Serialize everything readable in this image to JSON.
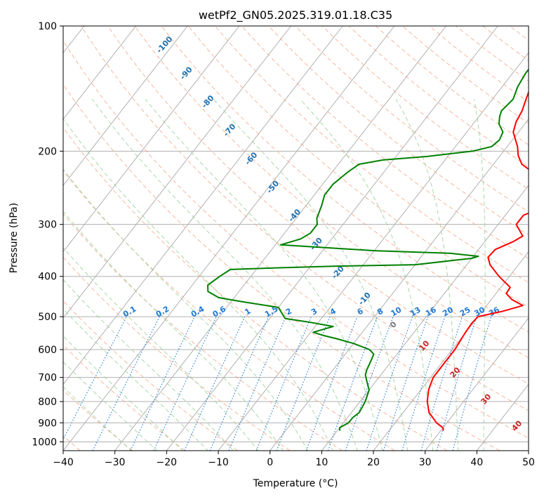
{
  "chart_data": {
    "type": "line",
    "chart_kind": "skew-T log-P diagram",
    "title": "wetPf2_GN05.2025.319.01.18.C35",
    "xlabel": "Temperature (°C)",
    "ylabel": "Pressure (hPa)",
    "xlim": [
      -40,
      50
    ],
    "ylim": [
      1050,
      100
    ],
    "y_scale": "log",
    "x_ticks": [
      -40,
      -30,
      -20,
      -10,
      0,
      10,
      20,
      30,
      40,
      50
    ],
    "y_ticks": [
      100,
      200,
      300,
      400,
      500,
      600,
      700,
      800,
      900,
      1000
    ],
    "grid": true,
    "series": [
      {
        "role": "temperature",
        "color": "#ff0000",
        "points": [
          [
            30.5,
            940
          ],
          [
            30,
            925
          ],
          [
            28,
            900
          ],
          [
            25,
            850
          ],
          [
            23,
            800
          ],
          [
            21.5,
            750
          ],
          [
            20.5,
            700
          ],
          [
            20.5,
            650
          ],
          [
            20.5,
            600
          ],
          [
            20,
            550
          ],
          [
            19.8,
            520
          ],
          [
            20,
            500
          ],
          [
            24,
            485
          ],
          [
            27,
            470
          ],
          [
            24,
            455
          ],
          [
            22,
            440
          ],
          [
            21.8,
            425
          ],
          [
            18,
            400
          ],
          [
            14.5,
            375
          ],
          [
            13,
            360
          ],
          [
            13.2,
            345
          ],
          [
            15.5,
            330
          ],
          [
            16.5,
            320
          ],
          [
            13.5,
            300
          ],
          [
            13.5,
            285
          ],
          [
            17,
            270
          ],
          [
            17.5,
            260
          ],
          [
            14,
            245
          ],
          [
            10.5,
            230
          ],
          [
            5.5,
            215
          ],
          [
            3.5,
            205
          ],
          [
            2,
            195
          ],
          [
            -1,
            180
          ],
          [
            -2,
            170
          ],
          [
            -2.5,
            160
          ],
          [
            -3.5,
            150
          ],
          [
            -4.5,
            140
          ],
          [
            -5.5,
            130
          ],
          [
            -6,
            120
          ],
          [
            -7.5,
            113
          ],
          [
            -8,
            108
          ],
          [
            -9,
            103
          ],
          [
            -9.5,
            100
          ]
        ]
      },
      {
        "role": "dewpoint",
        "color": "#008000",
        "points": [
          [
            10.5,
            940
          ],
          [
            10,
            925
          ],
          [
            11,
            900
          ],
          [
            11,
            875
          ],
          [
            11.5,
            850
          ],
          [
            11,
            800
          ],
          [
            10.5,
            775
          ],
          [
            10,
            750
          ],
          [
            8.5,
            720
          ],
          [
            7,
            690
          ],
          [
            6.5,
            670
          ],
          [
            6,
            640
          ],
          [
            5.5,
            615
          ],
          [
            4,
            600
          ],
          [
            0,
            580
          ],
          [
            -4,
            565
          ],
          [
            -7,
            555
          ],
          [
            -9.5,
            545
          ],
          [
            -6.5,
            528
          ],
          [
            -12,
            515
          ],
          [
            -17,
            505
          ],
          [
            -18,
            495
          ],
          [
            -20,
            475
          ],
          [
            -28,
            460
          ],
          [
            -33,
            450
          ],
          [
            -36,
            435
          ],
          [
            -37,
            420
          ],
          [
            -36,
            400
          ],
          [
            -35,
            385
          ],
          [
            -27,
            382
          ],
          [
            -15,
            378
          ],
          [
            0,
            375
          ],
          [
            10,
            362
          ],
          [
            11,
            358
          ],
          [
            5,
            352
          ],
          [
            -10,
            347
          ],
          [
            -29,
            336
          ],
          [
            -26,
            325
          ],
          [
            -25,
            315
          ],
          [
            -25,
            300
          ],
          [
            -26,
            290
          ],
          [
            -27,
            270
          ],
          [
            -28,
            255
          ],
          [
            -28,
            240
          ],
          [
            -27,
            225
          ],
          [
            -26,
            215
          ],
          [
            -22,
            210
          ],
          [
            -14,
            206
          ],
          [
            -6,
            200
          ],
          [
            -3,
            195
          ],
          [
            -2.5,
            188
          ],
          [
            -3,
            180
          ],
          [
            -5,
            172
          ],
          [
            -6,
            165
          ],
          [
            -6.5,
            160
          ],
          [
            -6,
            150
          ],
          [
            -7,
            140
          ],
          [
            -7.5,
            130
          ],
          [
            -7.5,
            120
          ],
          [
            -8,
            113
          ],
          [
            -9,
            107
          ],
          [
            -10,
            102
          ],
          [
            -10.5,
            100
          ]
        ]
      }
    ],
    "isotherm_step": 10,
    "dry_adiabat_labels": [
      "-100",
      "-90",
      "-80",
      "-70",
      "-60",
      "-50",
      "-40",
      "-30",
      "-20",
      "-10",
      "0",
      "10",
      "20",
      "30",
      "40"
    ],
    "mixing_ratio_labels": [
      "0.1",
      "0.2",
      "0.4",
      "0.6",
      "1",
      "1.5",
      "2",
      "3",
      "4",
      "6",
      "8",
      "10",
      "13",
      "16",
      "20",
      "25",
      "30",
      "36"
    ],
    "colors": {
      "temperature": "#ff0000",
      "dewpoint": "#008000",
      "isotherm": "#b0b0b0",
      "isobar": "#b0b0b0",
      "dry_adiabat": "#f4a582",
      "moist_adiabat": "#9fd39f",
      "mixing_ratio": "#1e78d4",
      "cold_label": "#1f6fae",
      "warm_label": "#cc2222",
      "zero_label": "#777777",
      "frame": "#000000"
    }
  }
}
